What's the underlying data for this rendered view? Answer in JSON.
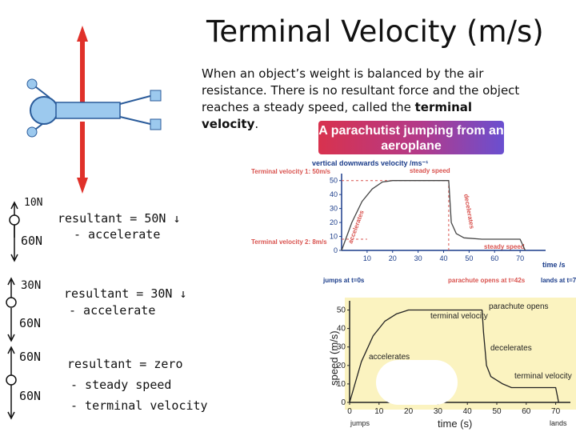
{
  "title": "Terminal Velocity (m/s)",
  "description": {
    "before": "When an object’s weight is balanced by the air resistance. There is no resultant force and the object reaches a steady speed, called the ",
    "bold": "terminal velocity",
    "after": "."
  },
  "notes": {
    "row1": {
      "top_force": "10N",
      "bottom_force": "60N",
      "line1": "resultant = 50N ↓",
      "line2": "- accelerate"
    },
    "row2": {
      "top_force": "30N",
      "bottom_force": "60N",
      "line1": "resultant = 30N ↓",
      "line2": "- accelerate"
    },
    "row3": {
      "top_force": "60N",
      "bottom_force": "60N",
      "line1": "resultant = zero",
      "line2": "- steady speed",
      "line3": "- terminal velocity"
    }
  },
  "banner": {
    "line1": "A parachutist jumping from an",
    "line2": "aeroplane"
  },
  "colors": {
    "red_arrow": "#e0312a",
    "body_blue": "#9cc9ee",
    "banner_start": "#d8324e",
    "banner_end": "#6a4fd0",
    "graph_red": "#d9534f",
    "graph2_bg": "#fbf3c0"
  },
  "chart_data": [
    {
      "type": "line",
      "ylabel": "vertical downwards velocity /ms⁻¹",
      "xlabel": "time /s",
      "x_ticks": [
        "10",
        "20",
        "30",
        "40",
        "50",
        "60",
        "70"
      ],
      "y_ticks": [
        "0",
        "10",
        "20",
        "30",
        "40",
        "50"
      ],
      "xlim": [
        0,
        80
      ],
      "ylim": [
        0,
        55
      ],
      "points": [
        [
          0,
          0
        ],
        [
          4,
          20
        ],
        [
          8,
          35
        ],
        [
          12,
          44
        ],
        [
          16,
          49
        ],
        [
          20,
          50
        ],
        [
          42,
          50
        ],
        [
          42.5,
          35
        ],
        [
          43,
          20
        ],
        [
          45,
          12
        ],
        [
          48,
          9
        ],
        [
          55,
          8
        ],
        [
          70,
          8
        ],
        [
          72,
          0
        ]
      ],
      "annotations": {
        "tv1_label": "Terminal velocity 1: 50m/s",
        "tv2_label": "Terminal velocity 2: 8m/s",
        "steady1": "steady speed",
        "steady2": "steady speed",
        "accelerates": "accelerates",
        "decelerates": "decelerates",
        "jumps": "jumps at t=0s",
        "parachute": "parachute opens at t=42s",
        "lands": "lands at t=70s"
      }
    },
    {
      "type": "line",
      "ylabel": "speed (m/s)",
      "xlabel": "time (s)",
      "x_ticks": [
        "0",
        "10",
        "20",
        "30",
        "40",
        "50",
        "60",
        "70"
      ],
      "y_ticks": [
        "0",
        "10",
        "20",
        "30",
        "40",
        "50"
      ],
      "xlim": [
        0,
        75
      ],
      "ylim": [
        0,
        55
      ],
      "points": [
        [
          0,
          0
        ],
        [
          4,
          22
        ],
        [
          8,
          36
        ],
        [
          12,
          44
        ],
        [
          16,
          48
        ],
        [
          20,
          50
        ],
        [
          45,
          50
        ],
        [
          45.5,
          38
        ],
        [
          46.5,
          20
        ],
        [
          48,
          14
        ],
        [
          52,
          10
        ],
        [
          55,
          8
        ],
        [
          70,
          8
        ],
        [
          71,
          0
        ]
      ],
      "annotations": {
        "tv_top": "terminal velocity",
        "parachute": "parachute opens",
        "accelerates": "accelerates",
        "decelerates": "decelerates",
        "tv_bottom": "terminal velocity",
        "jumps": "jumps",
        "lands": "lands"
      }
    }
  ]
}
